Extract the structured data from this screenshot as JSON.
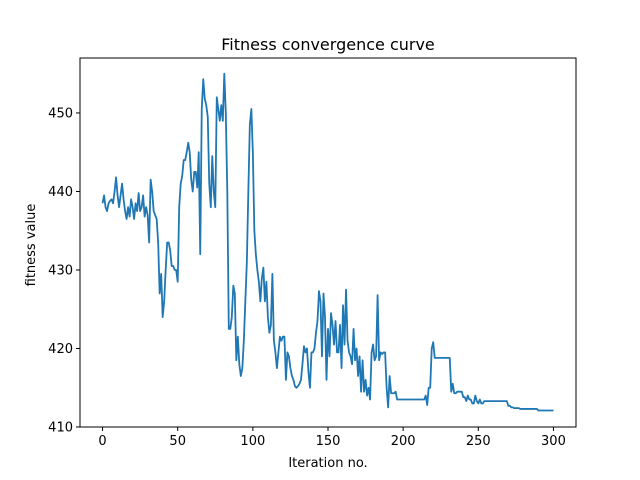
{
  "chart_data": {
    "type": "line",
    "title": "Fitness convergence curve",
    "xlabel": "Iteration no.",
    "ylabel": "fitness value",
    "xlim": [
      -15,
      315
    ],
    "ylim": [
      410,
      457
    ],
    "xticks": [
      0,
      50,
      100,
      150,
      200,
      250,
      300
    ],
    "yticks": [
      410,
      420,
      430,
      440,
      450
    ],
    "grid": false,
    "line_color": "#1f77b4",
    "series": [
      {
        "points": [
          [
            0,
            438.5
          ],
          [
            1,
            439.5
          ],
          [
            2,
            438
          ],
          [
            3,
            437.5
          ],
          [
            4,
            438.5
          ],
          [
            5,
            438.8
          ],
          [
            6,
            439
          ],
          [
            7,
            438.5
          ],
          [
            8,
            440
          ],
          [
            9,
            441.8
          ],
          [
            10,
            439.5
          ],
          [
            11,
            438
          ],
          [
            12,
            439.5
          ],
          [
            13,
            441
          ],
          [
            14,
            439
          ],
          [
            15,
            437.5
          ],
          [
            16,
            436.5
          ],
          [
            17,
            438
          ],
          [
            18,
            436.8
          ],
          [
            19,
            439
          ],
          [
            20,
            438
          ],
          [
            21,
            436.5
          ],
          [
            22,
            438.5
          ],
          [
            23,
            437.5
          ],
          [
            24,
            439.8
          ],
          [
            25,
            437.5
          ],
          [
            26,
            438
          ],
          [
            27,
            439.5
          ],
          [
            28,
            436.8
          ],
          [
            29,
            438
          ],
          [
            30,
            437
          ],
          [
            31,
            433.5
          ],
          [
            32,
            441.5
          ],
          [
            33,
            440
          ],
          [
            34,
            437.5
          ],
          [
            35,
            437
          ],
          [
            36,
            436.5
          ],
          [
            37,
            433.5
          ],
          [
            38,
            427
          ],
          [
            39,
            429.5
          ],
          [
            40,
            424
          ],
          [
            41,
            426
          ],
          [
            42,
            430
          ],
          [
            43,
            433.5
          ],
          [
            44,
            433.5
          ],
          [
            45,
            432.5
          ],
          [
            46,
            430.5
          ],
          [
            47,
            430.5
          ],
          [
            48,
            430
          ],
          [
            49,
            430
          ],
          [
            50,
            428.5
          ],
          [
            51,
            438
          ],
          [
            52,
            441
          ],
          [
            53,
            442
          ],
          [
            54,
            444
          ],
          [
            55,
            444
          ],
          [
            56,
            445
          ],
          [
            57,
            446.2
          ],
          [
            58,
            445
          ],
          [
            59,
            441.5
          ],
          [
            60,
            440
          ],
          [
            61,
            442.5
          ],
          [
            62,
            442.5
          ],
          [
            63,
            440.5
          ],
          [
            64,
            445
          ],
          [
            65,
            432
          ],
          [
            66,
            450.5
          ],
          [
            67,
            454.3
          ],
          [
            68,
            451.8
          ],
          [
            69,
            451
          ],
          [
            70,
            449.5
          ],
          [
            71,
            441
          ],
          [
            72,
            438
          ],
          [
            73,
            444.5
          ],
          [
            74,
            440
          ],
          [
            75,
            438
          ],
          [
            76,
            452
          ],
          [
            77,
            450.5
          ],
          [
            78,
            449
          ],
          [
            79,
            451
          ],
          [
            80,
            449
          ],
          [
            81,
            455
          ],
          [
            82,
            450
          ],
          [
            83,
            440
          ],
          [
            84,
            422.5
          ],
          [
            85,
            422.5
          ],
          [
            86,
            424
          ],
          [
            87,
            428
          ],
          [
            88,
            427
          ],
          [
            89,
            418.5
          ],
          [
            90,
            421.5
          ],
          [
            91,
            418
          ],
          [
            92,
            416.5
          ],
          [
            93,
            417.5
          ],
          [
            94,
            421
          ],
          [
            95,
            426
          ],
          [
            96,
            431
          ],
          [
            97,
            440
          ],
          [
            98,
            448.5
          ],
          [
            99,
            450.5
          ],
          [
            100,
            445
          ],
          [
            101,
            435
          ],
          [
            102,
            432
          ],
          [
            103,
            430
          ],
          [
            104,
            428.5
          ],
          [
            105,
            426
          ],
          [
            106,
            429
          ],
          [
            107,
            430.3
          ],
          [
            108,
            426
          ],
          [
            109,
            428.5
          ],
          [
            110,
            424
          ],
          [
            111,
            422
          ],
          [
            112,
            423
          ],
          [
            113,
            429.5
          ],
          [
            114,
            421
          ],
          [
            115,
            419.5
          ],
          [
            116,
            417.5
          ],
          [
            117,
            419.5
          ],
          [
            118,
            421.5
          ],
          [
            119,
            421
          ],
          [
            120,
            421.5
          ],
          [
            121,
            421.5
          ],
          [
            122,
            416
          ],
          [
            123,
            419.5
          ],
          [
            124,
            419
          ],
          [
            125,
            417.5
          ],
          [
            126,
            416.5
          ],
          [
            127,
            416
          ],
          [
            128,
            415.2
          ],
          [
            129,
            415
          ],
          [
            130,
            415.2
          ],
          [
            131,
            415.5
          ],
          [
            132,
            416
          ],
          [
            133,
            418
          ],
          [
            134,
            420.3
          ],
          [
            135,
            419.5
          ],
          [
            136,
            420
          ],
          [
            137,
            417
          ],
          [
            138,
            415
          ],
          [
            139,
            419.5
          ],
          [
            140,
            419.5
          ],
          [
            141,
            420
          ],
          [
            142,
            422
          ],
          [
            143,
            423.5
          ],
          [
            144,
            427.3
          ],
          [
            145,
            426
          ],
          [
            146,
            419
          ],
          [
            147,
            427
          ],
          [
            148,
            424
          ],
          [
            149,
            416
          ],
          [
            150,
            422.5
          ],
          [
            151,
            419
          ],
          [
            152,
            424.5
          ],
          [
            153,
            423
          ],
          [
            154,
            420.5
          ],
          [
            155,
            423.5
          ],
          [
            156,
            419.5
          ],
          [
            157,
            419.5
          ],
          [
            158,
            423
          ],
          [
            159,
            417.5
          ],
          [
            160,
            425.5
          ],
          [
            161,
            420.5
          ],
          [
            162,
            427.5
          ],
          [
            163,
            421
          ],
          [
            164,
            419.5
          ],
          [
            165,
            419
          ],
          [
            166,
            418
          ],
          [
            167,
            422.5
          ],
          [
            168,
            418.5
          ],
          [
            169,
            420
          ],
          [
            170,
            416.5
          ],
          [
            171,
            419
          ],
          [
            172,
            414.5
          ],
          [
            173,
            418.5
          ],
          [
            174,
            414.5
          ],
          [
            175,
            416
          ],
          [
            176,
            414
          ],
          [
            177,
            415
          ],
          [
            178,
            413.5
          ],
          [
            179,
            419.5
          ],
          [
            180,
            420.5
          ],
          [
            181,
            418.5
          ],
          [
            182,
            419
          ],
          [
            183,
            426.8
          ],
          [
            184,
            418.5
          ],
          [
            185,
            419.5
          ],
          [
            186,
            419.3
          ],
          [
            187,
            419.5
          ],
          [
            188,
            419.5
          ],
          [
            189,
            415
          ],
          [
            190,
            412.5
          ],
          [
            191,
            416.5
          ],
          [
            192,
            414.3
          ],
          [
            193,
            414.3
          ],
          [
            194,
            414.3
          ],
          [
            195,
            414.5
          ],
          [
            196,
            413.5
          ],
          [
            197,
            413.5
          ],
          [
            198,
            413.5
          ],
          [
            199,
            413.5
          ],
          [
            200,
            413.5
          ],
          [
            201,
            413.5
          ],
          [
            202,
            413.5
          ],
          [
            203,
            413.5
          ],
          [
            204,
            413.5
          ],
          [
            205,
            413.5
          ],
          [
            206,
            413.5
          ],
          [
            207,
            413.5
          ],
          [
            208,
            413.5
          ],
          [
            209,
            413.5
          ],
          [
            210,
            413.5
          ],
          [
            211,
            413.5
          ],
          [
            212,
            413.5
          ],
          [
            213,
            413.5
          ],
          [
            214,
            413.5
          ],
          [
            215,
            414
          ],
          [
            216,
            412.8
          ],
          [
            217,
            415
          ],
          [
            218,
            415
          ],
          [
            219,
            420
          ],
          [
            220,
            420.8
          ],
          [
            221,
            418.8
          ],
          [
            222,
            418.8
          ],
          [
            223,
            418.8
          ],
          [
            224,
            418.8
          ],
          [
            225,
            418.8
          ],
          [
            226,
            418.8
          ],
          [
            227,
            418.8
          ],
          [
            228,
            418.8
          ],
          [
            229,
            418.8
          ],
          [
            230,
            418.8
          ],
          [
            231,
            418.8
          ],
          [
            232,
            414.5
          ],
          [
            233,
            415.5
          ],
          [
            234,
            414.3
          ],
          [
            235,
            414.3
          ],
          [
            236,
            414.5
          ],
          [
            237,
            414.5
          ],
          [
            238,
            414.5
          ],
          [
            239,
            414.5
          ],
          [
            240,
            413.8
          ],
          [
            241,
            413.8
          ],
          [
            242,
            413.3
          ],
          [
            243,
            414
          ],
          [
            244,
            413.5
          ],
          [
            245,
            413.5
          ],
          [
            246,
            413
          ],
          [
            247,
            413
          ],
          [
            248,
            414
          ],
          [
            249,
            413.3
          ],
          [
            250,
            413
          ],
          [
            251,
            413.5
          ],
          [
            252,
            413
          ],
          [
            253,
            413
          ],
          [
            254,
            413.3
          ],
          [
            255,
            413.3
          ],
          [
            256,
            413.3
          ],
          [
            257,
            413.3
          ],
          [
            258,
            413.3
          ],
          [
            259,
            413.3
          ],
          [
            260,
            413.3
          ],
          [
            261,
            413.3
          ],
          [
            262,
            413.3
          ],
          [
            263,
            413.3
          ],
          [
            264,
            413.3
          ],
          [
            265,
            413.3
          ],
          [
            266,
            413.3
          ],
          [
            267,
            413.3
          ],
          [
            268,
            413.3
          ],
          [
            269,
            413.3
          ],
          [
            270,
            412.7
          ],
          [
            271,
            412.7
          ],
          [
            272,
            412.5
          ],
          [
            273,
            412.5
          ],
          [
            274,
            412.4
          ],
          [
            275,
            412.4
          ],
          [
            276,
            412.4
          ],
          [
            277,
            412.4
          ],
          [
            278,
            412.3
          ],
          [
            279,
            412.3
          ],
          [
            280,
            412.3
          ],
          [
            281,
            412.3
          ],
          [
            282,
            412.3
          ],
          [
            283,
            412.3
          ],
          [
            284,
            412.3
          ],
          [
            285,
            412.3
          ],
          [
            286,
            412.3
          ],
          [
            287,
            412.3
          ],
          [
            288,
            412.3
          ],
          [
            289,
            412.3
          ],
          [
            290,
            412.1
          ],
          [
            291,
            412.1
          ],
          [
            292,
            412.1
          ],
          [
            293,
            412.1
          ],
          [
            294,
            412.1
          ],
          [
            295,
            412.1
          ],
          [
            296,
            412.1
          ],
          [
            297,
            412.1
          ],
          [
            298,
            412.1
          ],
          [
            299,
            412.1
          ],
          [
            300,
            412.1
          ]
        ]
      }
    ]
  }
}
